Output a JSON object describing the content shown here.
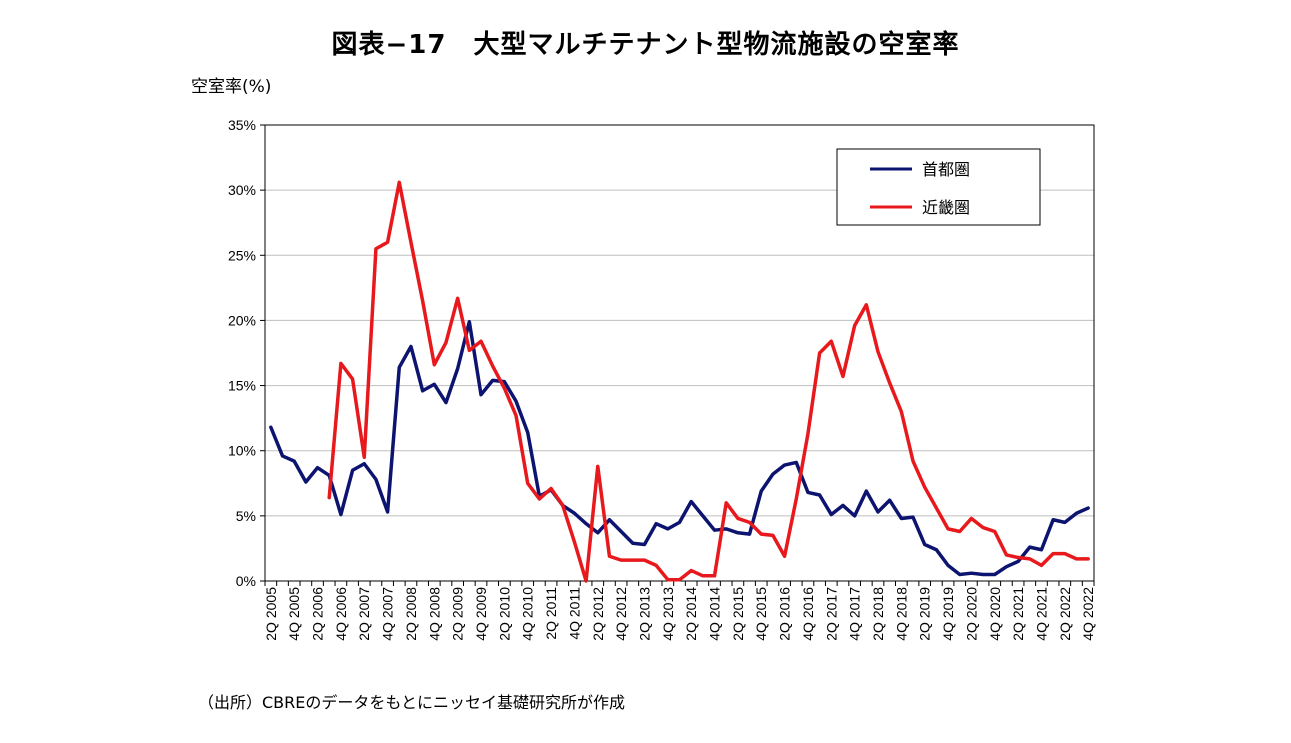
{
  "chart_data": {
    "type": "line",
    "title": "図表−17　大型マルチテナント型物流施設の空室率",
    "ylabel": "空室率(%)",
    "source_note": "（出所）CBREのデータをもとにニッセイ基礎研究所が作成",
    "ylim": [
      0,
      35
    ],
    "yticks": [
      "0%",
      "5%",
      "10%",
      "15%",
      "20%",
      "25%",
      "30%",
      "35%"
    ],
    "legend_position": "top-right",
    "x_tick_labels": [
      "2Q 2005",
      "4Q 2005",
      "2Q 2006",
      "4Q 2006",
      "2Q 2007",
      "4Q 2007",
      "2Q 2008",
      "4Q 2008",
      "2Q 2009",
      "4Q 2009",
      "2Q 2010",
      "4Q 2010",
      "2Q 2011",
      "4Q 2011",
      "2Q 2012",
      "4Q 2012",
      "2Q 2013",
      "4Q 2013",
      "2Q 2014",
      "4Q 2014",
      "2Q 2015",
      "4Q 2015",
      "2Q 2016",
      "4Q 2016",
      "2Q 2017",
      "4Q 2017",
      "2Q 2018",
      "4Q 2018",
      "2Q 2019",
      "4Q 2019",
      "2Q 2020",
      "4Q 2020",
      "2Q 2021",
      "4Q 2021",
      "2Q 2022",
      "4Q 2022"
    ],
    "series": [
      {
        "name": "首都圏",
        "color": "#0d1470",
        "values": [
          11.8,
          9.6,
          9.2,
          7.6,
          8.7,
          8.1,
          5.1,
          8.5,
          9.0,
          7.8,
          5.3,
          16.4,
          18.0,
          14.6,
          15.1,
          13.7,
          16.3,
          19.9,
          14.3,
          15.4,
          15.3,
          13.8,
          11.4,
          6.5,
          7.0,
          5.8,
          5.2,
          4.4,
          3.7,
          4.7,
          3.8,
          2.9,
          2.8,
          4.4,
          4.0,
          4.5,
          6.1,
          5.0,
          3.9,
          4.0,
          3.7,
          3.6,
          6.9,
          8.2,
          8.9,
          9.1,
          6.8,
          6.6,
          5.1,
          5.8,
          5.0,
          6.9,
          5.3,
          6.2,
          4.8,
          4.9,
          2.8,
          2.4,
          1.2,
          0.5,
          0.6,
          0.5,
          0.5,
          1.1,
          1.5,
          2.6,
          2.4,
          4.7,
          4.5,
          5.2,
          5.6
        ]
      },
      {
        "name": "近畿圏",
        "color": "#e8191d",
        "start_index": 5,
        "values": [
          6.4,
          16.7,
          15.5,
          9.5,
          25.5,
          26.0,
          30.6,
          26.0,
          21.5,
          16.6,
          18.3,
          21.7,
          17.7,
          18.4,
          16.5,
          14.8,
          12.7,
          7.5,
          6.3,
          7.1,
          5.8,
          3.0,
          0.0,
          8.8,
          1.9,
          1.6,
          1.6,
          1.6,
          1.2,
          0.1,
          0.1,
          0.8,
          0.4,
          0.4,
          6.0,
          4.8,
          4.5,
          3.6,
          3.5,
          1.9,
          6.3,
          11.3,
          17.5,
          18.4,
          15.7,
          19.6,
          21.2,
          17.6,
          15.2,
          13.0,
          9.2,
          7.2,
          5.6,
          4.0,
          3.8,
          4.8,
          4.1,
          3.8,
          2.0,
          1.8,
          1.7,
          1.2,
          2.1,
          2.1,
          1.7,
          1.7
        ]
      }
    ]
  }
}
